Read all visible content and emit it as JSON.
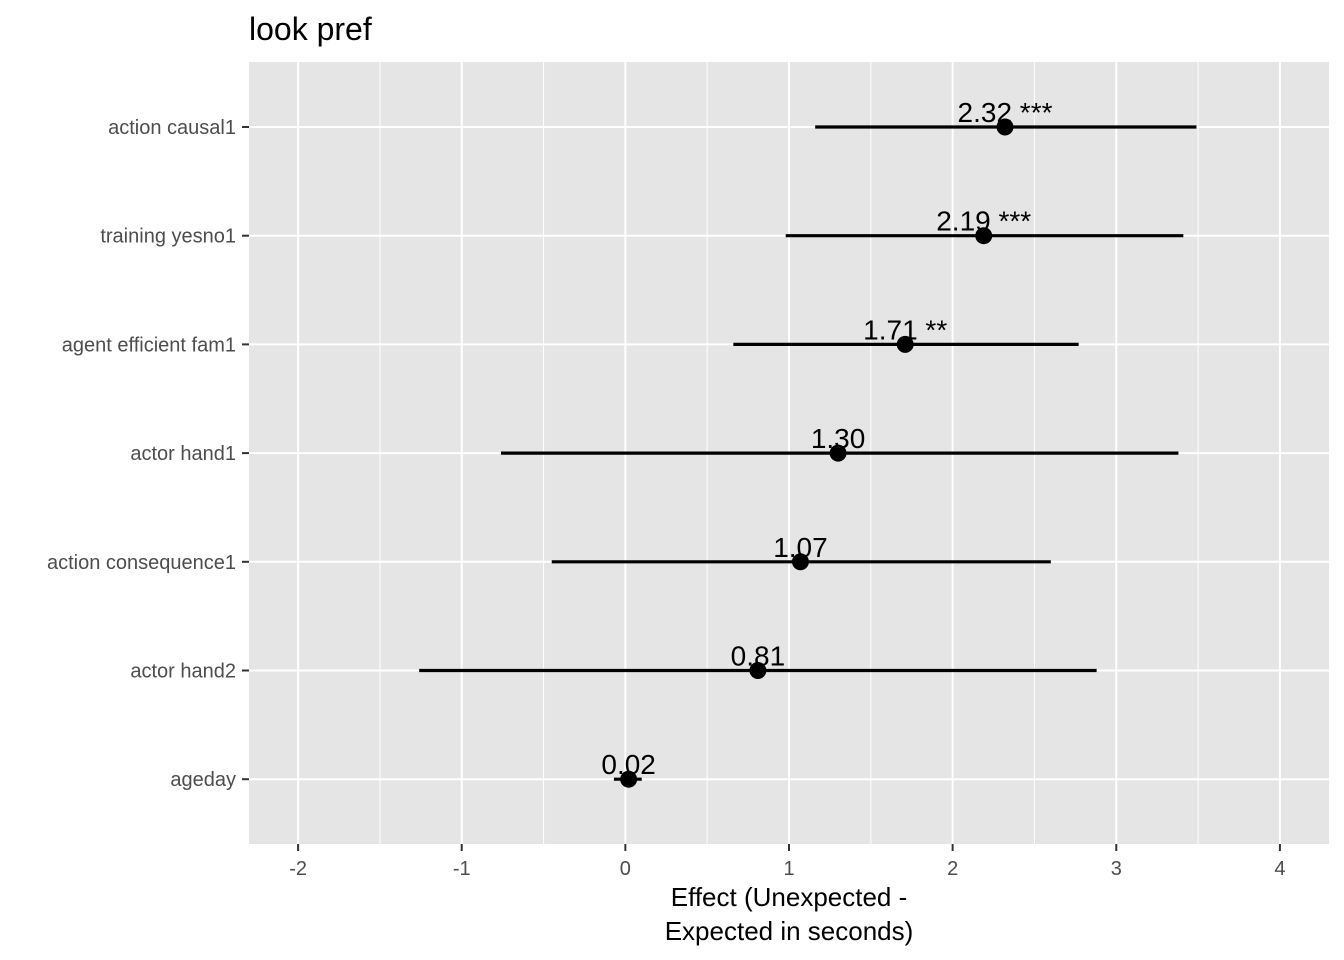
{
  "chart_data": {
    "type": "scatter",
    "subtype": "coefficient-plot-with-intervals",
    "title": "look pref",
    "xlabel_lines": [
      "Effect (Unexpected -",
      "Expected in seconds)"
    ],
    "ylabel": "",
    "xlim": [
      -2.3,
      4.3
    ],
    "x_ticks": [
      -2,
      -1,
      0,
      1,
      2,
      3,
      4
    ],
    "x_tick_labels": [
      "-2",
      "-1",
      "0",
      "1",
      "2",
      "3",
      "4"
    ],
    "grid": true,
    "legend": "none",
    "colors": {
      "panel": "#e5e5e5",
      "grid": "#ffffff",
      "mark": "#000000",
      "tick_text": "#4d4d4d"
    },
    "categories": [
      "action causal1",
      "training yesno1",
      "agent efficient fam1",
      "actor hand1",
      "action consequence1",
      "actor hand2",
      "ageday"
    ],
    "points": [
      {
        "term": "action causal1",
        "estimate": 2.32,
        "low": 1.16,
        "high": 3.49,
        "label": "2.32 ***"
      },
      {
        "term": "training yesno1",
        "estimate": 2.19,
        "low": 0.98,
        "high": 3.41,
        "label": "2.19 ***"
      },
      {
        "term": "agent efficient fam1",
        "estimate": 1.71,
        "low": 0.66,
        "high": 2.77,
        "label": "1.71 **"
      },
      {
        "term": "actor hand1",
        "estimate": 1.3,
        "low": -0.76,
        "high": 3.38,
        "label": "1.30"
      },
      {
        "term": "action consequence1",
        "estimate": 1.07,
        "low": -0.45,
        "high": 2.6,
        "label": "1.07"
      },
      {
        "term": "actor hand2",
        "estimate": 0.81,
        "low": -1.26,
        "high": 2.88,
        "label": "0.81"
      },
      {
        "term": "ageday",
        "estimate": 0.02,
        "low": -0.07,
        "high": 0.1,
        "label": "0.02"
      }
    ]
  }
}
